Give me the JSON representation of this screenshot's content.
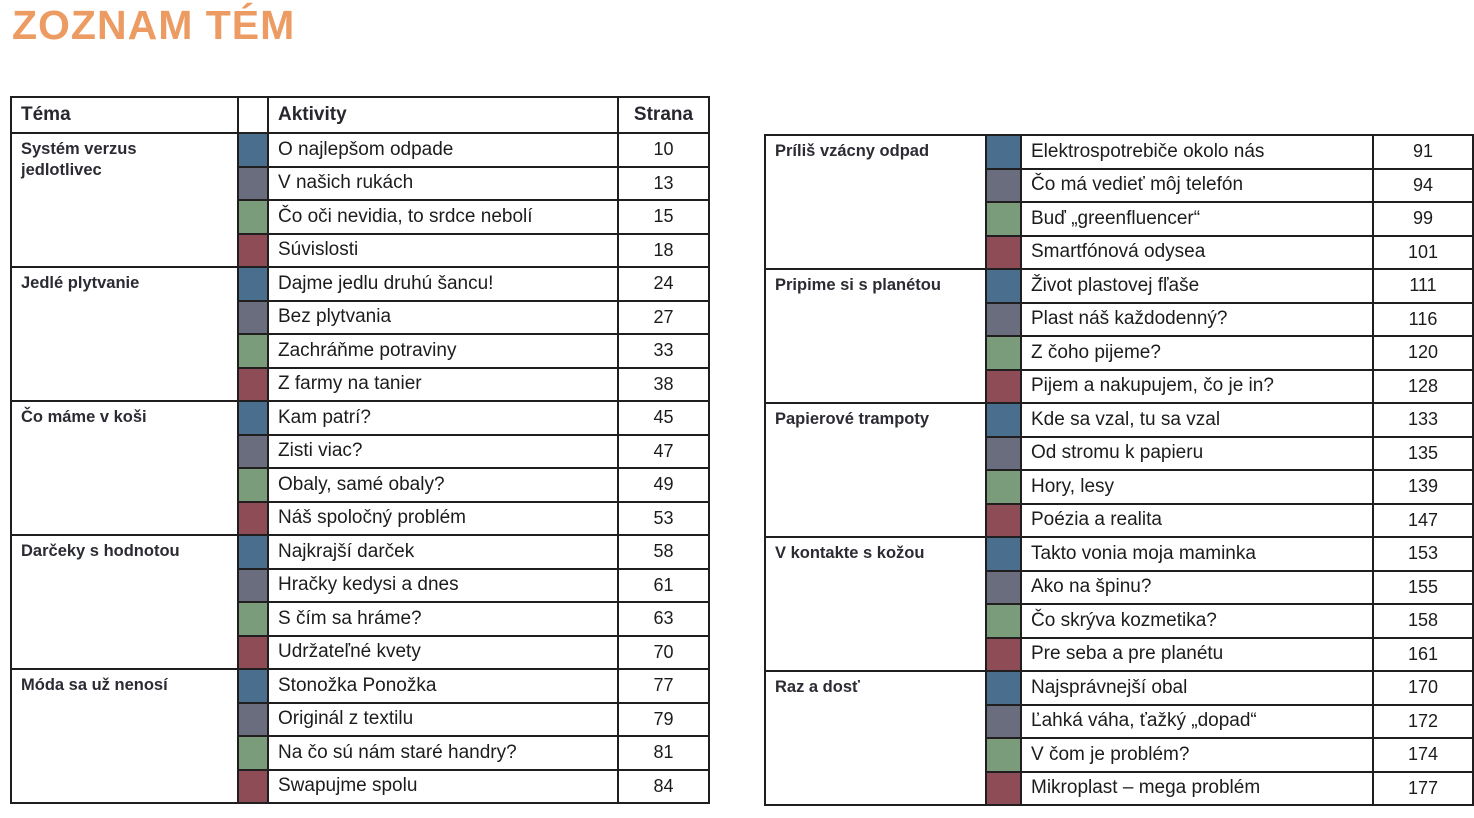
{
  "page_title": "ZOZNAM TÉM",
  "colors": {
    "accent_orange": "#EC9B63",
    "blue": "#4A6F8E",
    "gray": "#696D7E",
    "green": "#7A9C7B",
    "red": "#8E4C57",
    "border": "#211E1F"
  },
  "table": {
    "headers": {
      "tema": "Téma",
      "aktivity": "Aktivity",
      "strana": "Strana"
    },
    "left_sections": [
      {
        "tema": "Systém verzus jedlotlivec",
        "rows": [
          {
            "color": "blue",
            "aktivita": "O najlepšom odpade",
            "strana": "10"
          },
          {
            "color": "gray",
            "aktivita": "V našich rukách",
            "strana": "13"
          },
          {
            "color": "green",
            "aktivita": "Čo oči nevidia, to srdce nebolí",
            "strana": "15"
          },
          {
            "color": "red",
            "aktivita": "Súvislosti",
            "strana": "18"
          }
        ]
      },
      {
        "tema": "Jedlé plytvanie",
        "rows": [
          {
            "color": "blue",
            "aktivita": "Dajme jedlu druhú šancu!",
            "strana": "24"
          },
          {
            "color": "gray",
            "aktivita": "Bez plytvania",
            "strana": "27"
          },
          {
            "color": "green",
            "aktivita": "Zachráňme potraviny",
            "strana": "33"
          },
          {
            "color": "red",
            "aktivita": "Z farmy na tanier",
            "strana": "38"
          }
        ]
      },
      {
        "tema": "Čo máme v koši",
        "rows": [
          {
            "color": "blue",
            "aktivita": "Kam patrí?",
            "strana": "45"
          },
          {
            "color": "gray",
            "aktivita": "Zisti viac?",
            "strana": "47"
          },
          {
            "color": "green",
            "aktivita": "Obaly, samé obaly?",
            "strana": "49"
          },
          {
            "color": "red",
            "aktivita": "Náš spoločný problém",
            "strana": "53"
          }
        ]
      },
      {
        "tema": "Darčeky s hodnotou",
        "rows": [
          {
            "color": "blue",
            "aktivita": "Najkrajší darček",
            "strana": "58"
          },
          {
            "color": "gray",
            "aktivita": "Hračky kedysi a dnes",
            "strana": "61"
          },
          {
            "color": "green",
            "aktivita": "S čím sa hráme?",
            "strana": "63"
          },
          {
            "color": "red",
            "aktivita": "Udržateľné kvety",
            "strana": "70"
          }
        ]
      },
      {
        "tema": "Móda sa už nenosí",
        "rows": [
          {
            "color": "blue",
            "aktivita": "Stonožka Ponožka",
            "strana": "77"
          },
          {
            "color": "gray",
            "aktivita": "Originál z textilu",
            "strana": "79"
          },
          {
            "color": "green",
            "aktivita": "Na čo sú nám staré handry?",
            "strana": "81"
          },
          {
            "color": "red",
            "aktivita": "Swapujme spolu",
            "strana": "84"
          }
        ]
      }
    ],
    "right_sections": [
      {
        "tema": "Príliš vzácny odpad",
        "rows": [
          {
            "color": "blue",
            "aktivita": "Elektrospotrebiče okolo nás",
            "strana": "91"
          },
          {
            "color": "gray",
            "aktivita": "Čo má vedieť môj telefón",
            "strana": "94"
          },
          {
            "color": "green",
            "aktivita": "Buď „greenfluencer“",
            "strana": "99"
          },
          {
            "color": "red",
            "aktivita": "Smartfónová odysea",
            "strana": "101"
          }
        ]
      },
      {
        "tema": "Pripime si s planétou",
        "rows": [
          {
            "color": "blue",
            "aktivita": "Život plastovej fľaše",
            "strana": "111"
          },
          {
            "color": "gray",
            "aktivita": "Plast náš každodenný?",
            "strana": "116"
          },
          {
            "color": "green",
            "aktivita": "Z čoho pijeme?",
            "strana": "120"
          },
          {
            "color": "red",
            "aktivita": "Pijem a nakupujem, čo je in?",
            "strana": "128"
          }
        ]
      },
      {
        "tema": "Papierové trampoty",
        "rows": [
          {
            "color": "blue",
            "aktivita": "Kde sa vzal, tu sa vzal",
            "strana": "133"
          },
          {
            "color": "gray",
            "aktivita": "Od stromu k papieru",
            "strana": "135"
          },
          {
            "color": "green",
            "aktivita": "Hory, lesy",
            "strana": "139"
          },
          {
            "color": "red",
            "aktivita": "Poézia a realita",
            "strana": "147"
          }
        ]
      },
      {
        "tema": "V kontakte s kožou",
        "rows": [
          {
            "color": "blue",
            "aktivita": "Takto vonia moja maminka",
            "strana": "153"
          },
          {
            "color": "gray",
            "aktivita": "Ako na špinu?",
            "strana": "155"
          },
          {
            "color": "green",
            "aktivita": "Čo skrýva kozmetika?",
            "strana": "158"
          },
          {
            "color": "red",
            "aktivita": "Pre seba a pre planétu",
            "strana": "161"
          }
        ]
      },
      {
        "tema": "Raz a dosť",
        "rows": [
          {
            "color": "blue",
            "aktivita": "Najsprávnejší obal",
            "strana": "170"
          },
          {
            "color": "gray",
            "aktivita": "Ľahká váha, ťažký „dopad“",
            "strana": "172"
          },
          {
            "color": "green",
            "aktivita": "V čom je problém?",
            "strana": "174"
          },
          {
            "color": "red",
            "aktivita": "Mikroplast – mega problém",
            "strana": "177"
          }
        ]
      }
    ]
  }
}
